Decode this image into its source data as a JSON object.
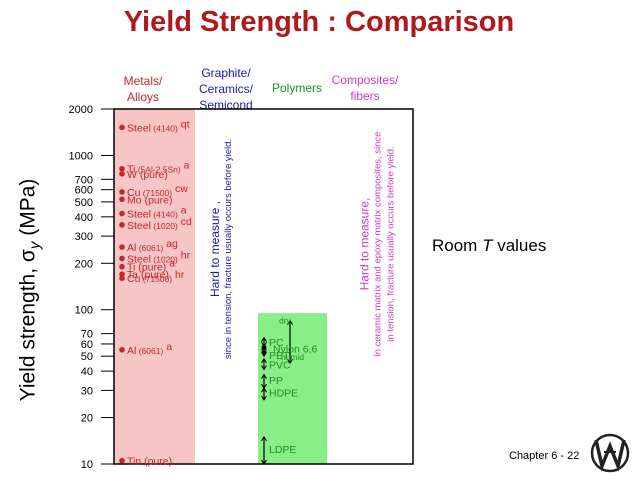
{
  "header": {
    "title": "Yield Strength : Comparison"
  },
  "categories": [
    {
      "key": "metals",
      "label_lines": [
        "Metals/",
        "Alloys"
      ],
      "color": "#c0282c"
    },
    {
      "key": "ceramics",
      "label_lines": [
        "Graphite/",
        "Ceramics/",
        "Semicond"
      ],
      "color": "#1a1aa6"
    },
    {
      "key": "polymers",
      "label_lines": [
        "Polymers"
      ],
      "color": "#1f8f1f"
    },
    {
      "key": "composites",
      "label_lines": [
        "Composites/",
        "fibers"
      ],
      "color": "#c83cc8"
    }
  ],
  "ylabel": {
    "main": "Yield strength,",
    "sym": "σ",
    "sub": "y",
    "unit": "(MPa)"
  },
  "annotations": {
    "ceramics": [
      "Hard to measure ,",
      "since in tension, fracture usually occurs before yield."
    ],
    "composites": [
      "Hard to measure,",
      "in ceramic matrix and epoxy matrix composites, since",
      "in tension, fracture usually occurs before yield."
    ]
  },
  "side_note": {
    "prefix": "Room ",
    "italic": "T",
    "suffix": " values"
  },
  "footer": "Chapter 6 -  22",
  "colors": {
    "metals_band": "#f7c5c5",
    "polymers_band": "#88ee88",
    "metal_text": "#c0282c",
    "polymer_text": "#1f8f1f",
    "frame": "#000000"
  },
  "chart_data": {
    "type": "scatter",
    "yscale": "log",
    "ylim": [
      10,
      2000
    ],
    "yticks": [
      {
        "v": 2000,
        "label": "2000"
      },
      {
        "v": 1000,
        "label": "1000"
      },
      {
        "v": 700,
        "label": "700"
      },
      {
        "v": 600,
        "label": "600"
      },
      {
        "v": 500,
        "label": "500"
      },
      {
        "v": 400,
        "label": "400"
      },
      {
        "v": 300,
        "label": "300"
      },
      {
        "v": 200,
        "label": "200"
      },
      {
        "v": 100,
        "label": "100"
      },
      {
        "v": 70,
        "label": "70"
      },
      {
        "v": 60,
        "label": "60"
      },
      {
        "v": 50,
        "label": "50"
      },
      {
        "v": 40,
        "label": "40"
      },
      {
        "v": 30,
        "label": "30"
      },
      {
        "v": 20,
        "label": "20"
      },
      {
        "v": 10,
        "label": "10"
      }
    ],
    "metals": [
      {
        "name": "Steel",
        "cond": "(4140)",
        "suffix": "qt",
        "value": 1520
      },
      {
        "name": "Ti",
        "cond": "(5Al-2.5Sn)",
        "suffix": "a",
        "value": 820
      },
      {
        "name": "W (pure)",
        "cond": "",
        "suffix": "",
        "value": 760
      },
      {
        "name": "Cu",
        "cond": "(71500)",
        "suffix": "cw",
        "value": 580
      },
      {
        "name": "Mo (pure)",
        "cond": "",
        "suffix": "",
        "value": 520
      },
      {
        "name": "Steel",
        "cond": "(4140)",
        "suffix": "a",
        "value": 420
      },
      {
        "name": "Steel",
        "cond": "(1020)",
        "suffix": "cd",
        "value": 355
      },
      {
        "name": "Al",
        "cond": "(6061)",
        "suffix": "ag",
        "value": 255
      },
      {
        "name": "Steel",
        "cond": "(1020)",
        "suffix": "hr",
        "value": 215
      },
      {
        "name": "Ti (pure)",
        "cond": "",
        "suffix": "a",
        "value": 190
      },
      {
        "name": "Ta (pure)",
        "cond": "",
        "suffix": "",
        "value": 170
      },
      {
        "name": "Cu",
        "cond": "(71500)",
        "suffix": "hr",
        "value": 160
      },
      {
        "name": "Al",
        "cond": "(6061)",
        "suffix": "a",
        "value": 55
      },
      {
        "name": "Tin (pure)",
        "cond": "",
        "suffix": "",
        "value": 10.5
      }
    ],
    "polymers": [
      {
        "name": "PC",
        "range": [
          58,
          66
        ]
      },
      {
        "name": "Nylon 6,6",
        "range": [
          45,
          85
        ],
        "dry": "dry",
        "humid": "humid"
      },
      {
        "name": "PET",
        "range": [
          50,
          58
        ]
      },
      {
        "name": "PVC",
        "range": [
          41,
          48
        ]
      },
      {
        "name": "PP",
        "range": [
          31,
          38
        ]
      },
      {
        "name": "HDPE",
        "range": [
          26,
          31
        ]
      },
      {
        "name": "LDPE",
        "range": [
          10,
          15
        ]
      }
    ]
  }
}
